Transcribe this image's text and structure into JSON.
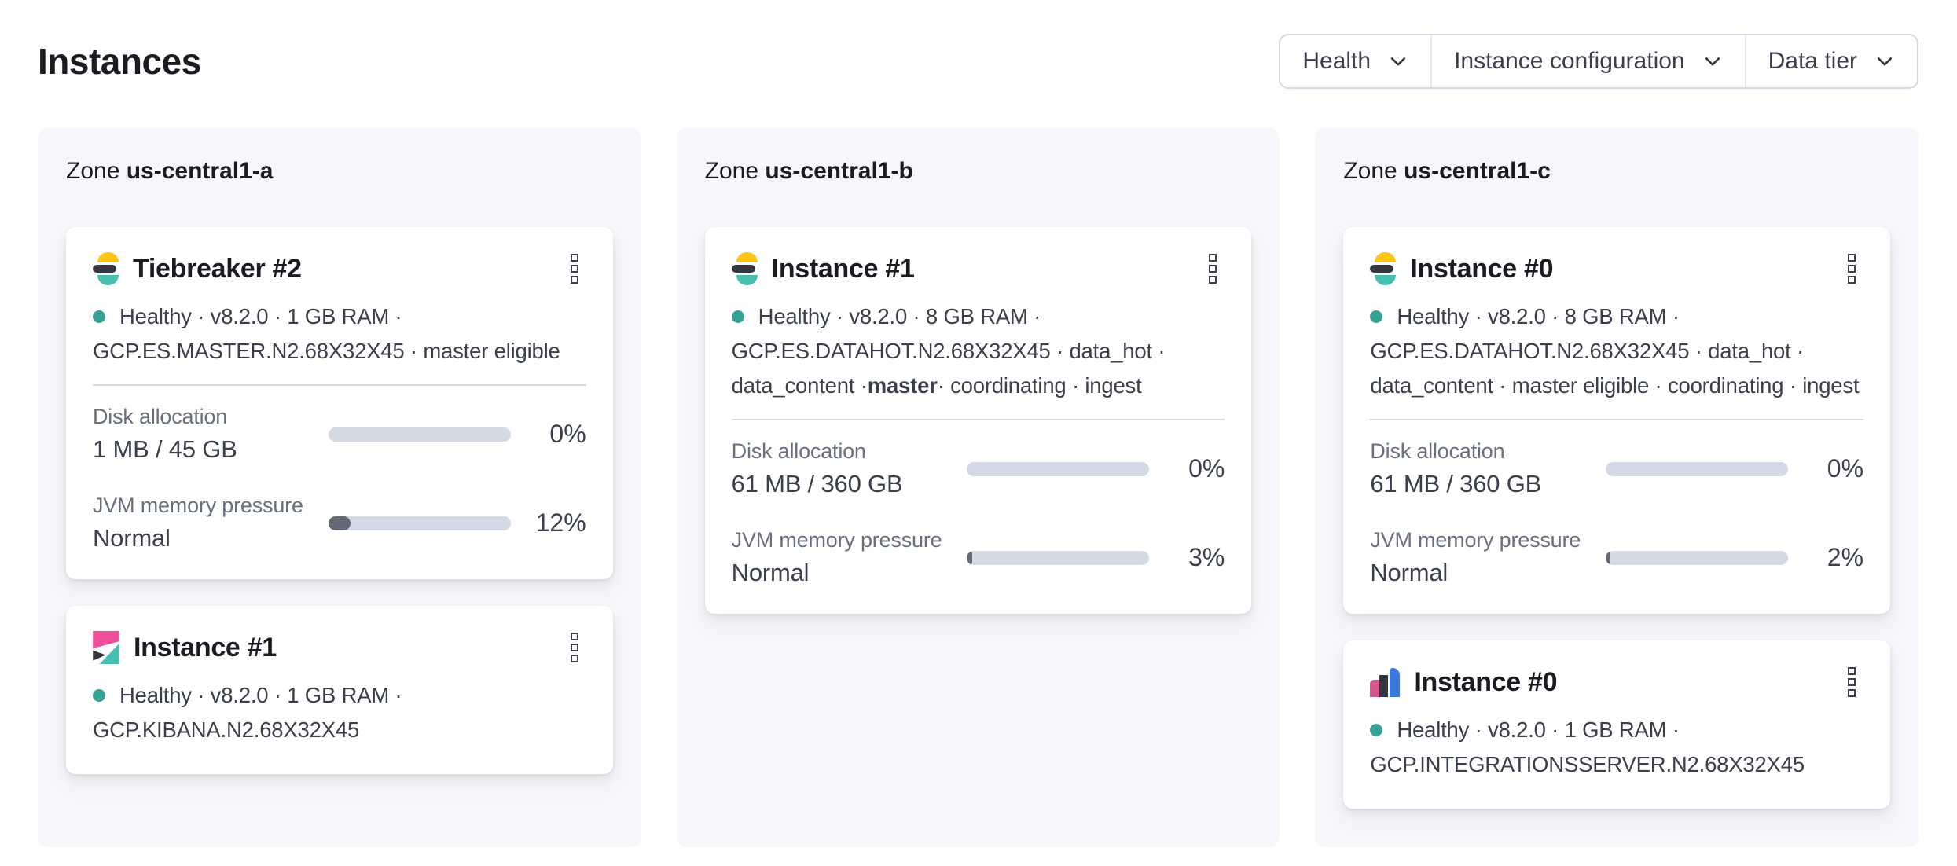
{
  "page": {
    "title": "Instances"
  },
  "filters": {
    "health_label": "Health",
    "instance_configuration_label": "Instance configuration",
    "data_tier_label": "Data tier"
  },
  "theme": {
    "text_dark": "#1a1c21",
    "text_body": "#3a3f4b",
    "text_subdued": "#69707d",
    "border": "#d3dae6",
    "divider": "#d3dae6",
    "panel_bg": "#f6f7fa",
    "health_dot": "#35a294",
    "bar_track": "#d3dae6",
    "bar_fill": "#636a75",
    "es_yellow": "#fec514",
    "es_teal": "#49bfb2",
    "logo_dark": "#343741",
    "kibana_pink": "#f04e98",
    "kibana_teal": "#45bfb0",
    "int_pink": "#d6578f",
    "int_blue": "#3b79dd"
  },
  "zones": [
    {
      "label_prefix": "Zone",
      "name": "us-central1-a",
      "cards": [
        {
          "title": "Tiebreaker #2",
          "logo": "elasticsearch",
          "line1": "Healthy · v8.2.0 · 1 GB RAM ·",
          "line2": "GCP.ES.MASTER.N2.68X32X45 · master eligible",
          "metrics": {
            "disk": {
              "label": "Disk allocation",
              "value": "1 MB / 45 GB",
              "percent": "0%",
              "fill": 0
            },
            "jvm": {
              "label": "JVM memory pressure",
              "value": "Normal",
              "percent": "12%",
              "fill": 12
            }
          }
        },
        {
          "title": "Instance #1",
          "logo": "kibana",
          "line1": "Healthy · v8.2.0 · 1 GB RAM ·",
          "line2": "GCP.KIBANA.N2.68X32X45"
        }
      ]
    },
    {
      "label_prefix": "Zone",
      "name": "us-central1-b",
      "cards": [
        {
          "title": "Instance #1",
          "logo": "elasticsearch",
          "line1": "Healthy · v8.2.0 · 8 GB RAM ·",
          "line2": "GCP.ES.DATAHOT.N2.68X32X45 · data_hot ·",
          "line3_pre": "data_content · ",
          "line3_bold": "master",
          "line3_post": " · coordinating · ingest",
          "metrics": {
            "disk": {
              "label": "Disk allocation",
              "value": "61 MB / 360 GB",
              "percent": "0%",
              "fill": 0
            },
            "jvm": {
              "label": "JVM memory pressure",
              "value": "Normal",
              "percent": "3%",
              "fill": 3
            }
          }
        }
      ]
    },
    {
      "label_prefix": "Zone",
      "name": "us-central1-c",
      "cards": [
        {
          "title": "Instance #0",
          "logo": "elasticsearch",
          "line1": "Healthy · v8.2.0 · 8 GB RAM ·",
          "line2": "GCP.ES.DATAHOT.N2.68X32X45 · data_hot ·",
          "line3_pre": "data_content · master eligible · coordinating · ingest",
          "line3_bold": "",
          "line3_post": "",
          "metrics": {
            "disk": {
              "label": "Disk allocation",
              "value": "61 MB / 360 GB",
              "percent": "0%",
              "fill": 0
            },
            "jvm": {
              "label": "JVM memory pressure",
              "value": "Normal",
              "percent": "2%",
              "fill": 2
            }
          }
        },
        {
          "title": "Instance #0",
          "logo": "integrations_server",
          "line1": "Healthy · v8.2.0 · 1 GB RAM ·",
          "line2": "GCP.INTEGRATIONSSERVER.N2.68X32X45"
        }
      ]
    }
  ]
}
